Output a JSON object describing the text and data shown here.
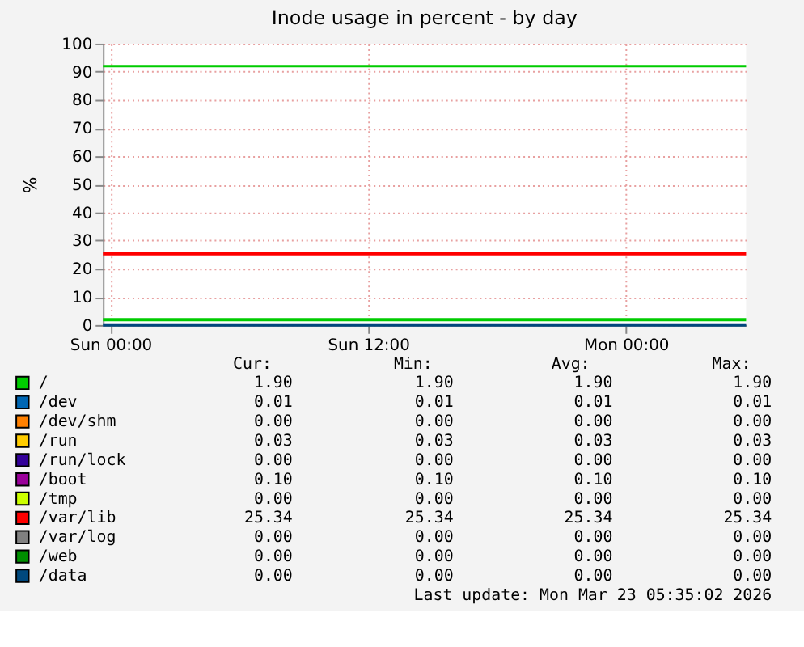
{
  "chart_data": {
    "type": "line",
    "title": "Inode usage in percent - by day",
    "ylabel": "%",
    "x": [
      "2026-03-21T23:39",
      "2026-03-23T05:36"
    ],
    "xlim": [
      "2026-03-21T23:39",
      "2026-03-23T05:36"
    ],
    "xticks": [
      {
        "value": "2026-03-22T00:00",
        "label": "Sun 00:00"
      },
      {
        "value": "2026-03-22T12:00",
        "label": "Sun 12:00"
      },
      {
        "value": "2026-03-23T00:00",
        "label": "Mon 00:00"
      }
    ],
    "ylim": [
      0,
      100
    ],
    "yticks": [
      0,
      10,
      20,
      30,
      40,
      50,
      60,
      70,
      80,
      90,
      100
    ],
    "grid": true,
    "legend": "bottom",
    "series": [
      {
        "name": "/",
        "color": "#00cc00",
        "values": [
          1.9,
          1.9
        ]
      },
      {
        "name": "/dev",
        "color": "#0066b3",
        "values": [
          null,
          null
        ]
      },
      {
        "name": "/dev/shm",
        "color": "#ff8000",
        "values": [
          null,
          null
        ]
      },
      {
        "name": "/run",
        "color": "#ffcc00",
        "values": [
          null,
          null
        ]
      },
      {
        "name": "/run/lock",
        "color": "#330099",
        "values": [
          null,
          null
        ]
      },
      {
        "name": "/boot",
        "color": "#990099",
        "values": [
          null,
          null
        ]
      },
      {
        "name": "/tmp",
        "color": "#ccff00",
        "values": [
          null,
          null
        ]
      },
      {
        "name": "/var/lib",
        "color": "#ff0000",
        "values": [
          25.34,
          25.34
        ]
      },
      {
        "name": "/var/log",
        "color": "#808080",
        "values": [
          null,
          null
        ]
      },
      {
        "name": "/web",
        "color": "#008f00",
        "values": [
          null,
          null
        ]
      },
      {
        "name": "/data",
        "color": "#00487d",
        "values": [
          0,
          0
        ]
      }
    ],
    "ref_lines": [
      {
        "axis": "y",
        "value": 92,
        "color": "#00cc00"
      }
    ],
    "annotations": [
      "Cur:",
      "Min:",
      "Avg:",
      "Max:",
      "1.90",
      "1.90",
      "1.90",
      "1.90",
      "0.01",
      "0.01",
      "0.01",
      "0.01",
      "0.00",
      "0.00",
      "0.00",
      "0.00",
      "0.03",
      "0.03",
      "0.03",
      "0.03",
      "0.00",
      "0.00",
      "0.00",
      "0.00",
      "0.10",
      "0.10",
      "0.10",
      "0.10",
      "0.00",
      "0.00",
      "0.00",
      "0.00",
      "25.34",
      "25.34",
      "25.34",
      "25.34",
      "0.00",
      "0.00",
      "0.00",
      "0.00",
      "0.00",
      "0.00",
      "0.00",
      "0.00",
      "0.00",
      "0.00",
      "0.00",
      "0.00",
      "Last update:  Mon Mar 23 05:35:02 2026"
    ]
  }
}
